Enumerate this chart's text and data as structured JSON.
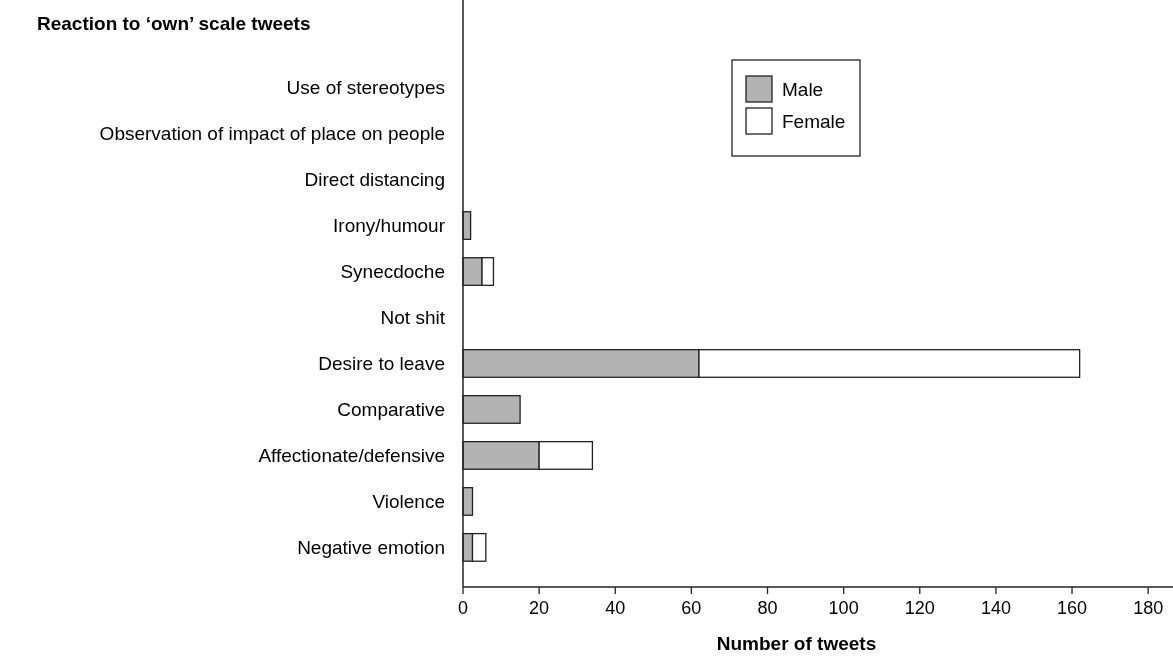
{
  "chart_data": {
    "type": "bar",
    "orientation": "horizontal",
    "stacked": true,
    "title": "Reaction to ‘own’ scale tweets",
    "xlabel": "Number of tweets",
    "categories": [
      "Use of stereotypes",
      "Observation of impact of place on people",
      "Direct distancing",
      "Irony/humour",
      "Synecdoche",
      "Not shit",
      "Desire to leave",
      "Comparative",
      "Affectionate/defensive",
      "Violence",
      "Negative emotion"
    ],
    "series": [
      {
        "name": "Male",
        "color": "#b3b3b3",
        "values": [
          0,
          0,
          0,
          2,
          5,
          0,
          62,
          15,
          20,
          2.5,
          2.5
        ]
      },
      {
        "name": "Female",
        "color": "#ffffff",
        "values": [
          0,
          0,
          0,
          0,
          3,
          0,
          100,
          0,
          14,
          0,
          3.5
        ]
      }
    ],
    "xlim": [
      0,
      186
    ],
    "xticks": [
      0,
      20,
      40,
      60,
      80,
      100,
      120,
      140,
      160,
      180
    ],
    "legend": "top",
    "grid": false
  }
}
